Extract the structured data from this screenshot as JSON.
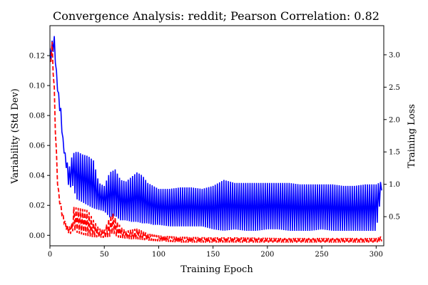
{
  "chart_data": {
    "type": "line",
    "title": "Convergence Analysis: reddit; Pearson Correlation: 0.82",
    "xlabel": "Training Epoch",
    "ylabel_left": "Variability (Std Dev)",
    "ylabel_right": "Training Loss",
    "xlim": [
      0,
      307
    ],
    "ylim_left": [
      -0.007,
      0.14
    ],
    "ylim_right": [
      0.05,
      3.45
    ],
    "x_ticks": [
      0,
      50,
      100,
      150,
      200,
      250,
      300
    ],
    "y_ticks_left": [
      0.0,
      0.02,
      0.04,
      0.06,
      0.08,
      0.1,
      0.12
    ],
    "y_ticks_left_labels": [
      "0.00",
      "0.02",
      "0.04",
      "0.06",
      "0.08",
      "0.10",
      "0.12"
    ],
    "y_ticks_right": [
      0.5,
      1.0,
      1.5,
      2.0,
      2.5,
      3.0
    ],
    "y_ticks_right_labels": [
      "0.5",
      "1.0",
      "1.5",
      "2.0",
      "2.5",
      "3.0"
    ],
    "grid": false,
    "series": [
      {
        "axis": "left",
        "color": "#0000ff",
        "style": "solid",
        "description": "oscillating series: envelope of upper and lower values per epoch",
        "x": [
          0,
          2,
          4,
          6,
          8,
          10,
          12,
          15,
          18,
          20,
          22,
          25,
          30,
          35,
          40,
          45,
          50,
          55,
          60,
          65,
          70,
          75,
          80,
          85,
          90,
          95,
          100,
          110,
          120,
          130,
          140,
          150,
          160,
          170,
          180,
          190,
          200,
          210,
          220,
          230,
          240,
          250,
          260,
          270,
          280,
          290,
          300,
          305
        ],
        "upper": [
          0.125,
          0.13,
          0.133,
          0.11,
          0.095,
          0.085,
          0.065,
          0.05,
          0.046,
          0.052,
          0.055,
          0.056,
          0.054,
          0.053,
          0.05,
          0.035,
          0.033,
          0.042,
          0.044,
          0.037,
          0.036,
          0.039,
          0.042,
          0.04,
          0.035,
          0.033,
          0.031,
          0.031,
          0.032,
          0.032,
          0.031,
          0.033,
          0.037,
          0.035,
          0.035,
          0.035,
          0.035,
          0.035,
          0.035,
          0.034,
          0.034,
          0.034,
          0.034,
          0.033,
          0.033,
          0.034,
          0.034,
          0.036
        ],
        "lower": [
          0.115,
          0.12,
          0.125,
          0.105,
          0.088,
          0.078,
          0.06,
          0.045,
          0.028,
          0.036,
          0.03,
          0.024,
          0.022,
          0.02,
          0.018,
          0.017,
          0.016,
          0.012,
          0.013,
          0.01,
          0.01,
          0.009,
          0.009,
          0.008,
          0.008,
          0.007,
          0.007,
          0.006,
          0.006,
          0.006,
          0.006,
          0.004,
          0.003,
          0.004,
          0.003,
          0.003,
          0.004,
          0.004,
          0.003,
          0.003,
          0.003,
          0.004,
          0.003,
          0.003,
          0.003,
          0.003,
          0.003,
          0.03
        ]
      },
      {
        "axis": "right",
        "color": "#ff0000",
        "style": "dashed",
        "description": "oscillating series: envelope of upper and lower values per epoch",
        "x": [
          0,
          1,
          2,
          3,
          4,
          5,
          6,
          7,
          8,
          10,
          12,
          15,
          18,
          20,
          22,
          25,
          30,
          35,
          40,
          45,
          50,
          55,
          58,
          62,
          66,
          70,
          75,
          80,
          85,
          90,
          100,
          120,
          150,
          180,
          210,
          240,
          270,
          300,
          305
        ],
        "upper": [
          2.9,
          3.1,
          3.2,
          2.9,
          2.5,
          2.0,
          1.5,
          1.1,
          0.9,
          0.7,
          0.55,
          0.38,
          0.35,
          0.4,
          0.65,
          0.64,
          0.62,
          0.6,
          0.45,
          0.32,
          0.3,
          0.5,
          0.55,
          0.42,
          0.33,
          0.28,
          0.3,
          0.32,
          0.28,
          0.24,
          0.21,
          0.19,
          0.18,
          0.18,
          0.17,
          0.17,
          0.17,
          0.17,
          0.2
        ],
        "lower": [
          2.7,
          2.9,
          3.0,
          2.7,
          2.3,
          1.8,
          1.3,
          1.0,
          0.8,
          0.6,
          0.45,
          0.3,
          0.22,
          0.25,
          0.3,
          0.25,
          0.22,
          0.2,
          0.18,
          0.18,
          0.17,
          0.19,
          0.25,
          0.18,
          0.17,
          0.16,
          0.15,
          0.15,
          0.14,
          0.13,
          0.12,
          0.1,
          0.1,
          0.1,
          0.1,
          0.1,
          0.1,
          0.1,
          0.12
        ]
      }
    ]
  }
}
